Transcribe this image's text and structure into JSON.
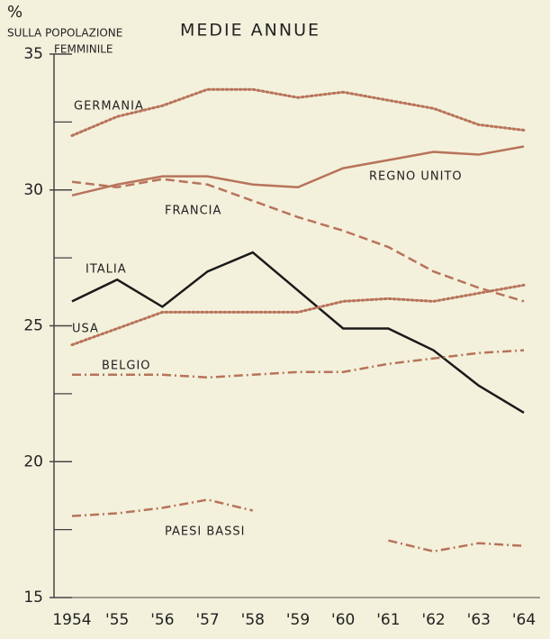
{
  "chart_data": {
    "type": "line",
    "unit": "%",
    "ylabel": [
      "SULLA POPOLAZIONE",
      "FEMMINILE"
    ],
    "title": "MEDIE ANNUE",
    "categories": [
      "1954",
      "'55",
      "'56",
      "'57",
      "'58",
      "'59",
      "'60",
      "'61",
      "'62",
      "'63",
      "'64"
    ],
    "series": [
      {
        "name": "GERMANIA",
        "color": "#b8735a",
        "style": "dotted",
        "values": [
          32.0,
          32.7,
          33.1,
          33.7,
          33.7,
          33.4,
          33.6,
          33.3,
          33.0,
          32.4,
          32.2
        ]
      },
      {
        "name": "REGNO UNITO",
        "color": "#b8735a",
        "style": "solid",
        "values": [
          29.8,
          30.2,
          30.5,
          30.5,
          30.2,
          30.1,
          30.8,
          31.1,
          31.4,
          31.3,
          31.6
        ]
      },
      {
        "name": "FRANCIA",
        "color": "#b8735a",
        "style": "dashed",
        "values": [
          30.3,
          30.1,
          30.4,
          30.2,
          29.6,
          29.0,
          28.5,
          27.9,
          27.0,
          26.4,
          25.9
        ]
      },
      {
        "name": "ITALIA",
        "color": "#1a1a1a",
        "style": "solid",
        "values": [
          25.9,
          26.7,
          25.7,
          27.0,
          27.7,
          26.3,
          24.9,
          24.9,
          24.1,
          22.8,
          21.8
        ]
      },
      {
        "name": "USA",
        "color": "#b8735a",
        "style": "dotted",
        "values": [
          24.3,
          24.9,
          25.5,
          25.5,
          25.5,
          25.5,
          25.9,
          26.0,
          25.9,
          26.2,
          26.5
        ]
      },
      {
        "name": "BELGIO",
        "color": "#b8735a",
        "style": "dashdot",
        "values": [
          23.2,
          23.2,
          23.2,
          23.1,
          23.2,
          23.3,
          23.3,
          23.6,
          23.8,
          24.0,
          24.1
        ]
      },
      {
        "name": "PAESI BASSI",
        "color": "#b8735a",
        "style": "dashdot",
        "values": [
          18.0,
          18.1,
          18.3,
          18.6,
          18.2,
          null,
          null,
          17.1,
          16.7,
          17.0,
          16.9
        ]
      }
    ],
    "ylim": [
      15,
      35
    ],
    "yticks": [
      15,
      20,
      25,
      30,
      35
    ],
    "yminor_ticks": [
      17.5,
      22.5,
      27.5,
      32.5
    ]
  }
}
